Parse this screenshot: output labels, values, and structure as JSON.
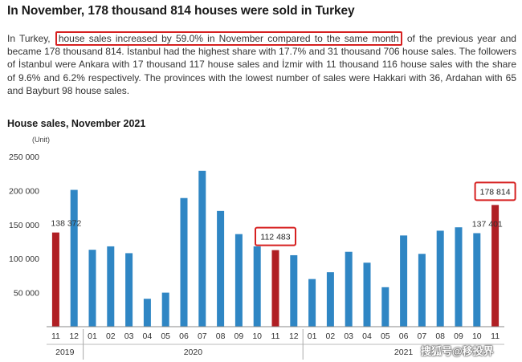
{
  "article": {
    "headline": "In November, 178 thousand 814 houses were sold in Turkey",
    "paragraph_before": "In Turkey, ",
    "paragraph_highlight": "house sales increased by 59.0% in November compared to the same month",
    "paragraph_after": " of the previous year and became 178 thousand 814. İstanbul had the highest share with 17.7% and 31 thousand 706 house sales. The followers of İstanbul were Ankara with 17 thousand 117 house sales and İzmir with 11 thousand 116 house sales with the share of 9.6% and 6.2% respectively. The provinces with the lowest number of sales were Hakkari with 36, Ardahan with 65 and Bayburt 98 house sales."
  },
  "chart_data": {
    "type": "bar",
    "title": "House sales, November 2021",
    "ylabel": "(Unit)",
    "ylim": [
      0,
      250000
    ],
    "yticks": [
      50000,
      100000,
      150000,
      200000,
      250000
    ],
    "ytick_labels": [
      "50 000",
      "100 000",
      "150 000",
      "200 000",
      "250 000"
    ],
    "categories": [
      "11",
      "12",
      "01",
      "02",
      "03",
      "04",
      "05",
      "06",
      "07",
      "08",
      "09",
      "10",
      "11",
      "12",
      "01",
      "02",
      "03",
      "04",
      "05",
      "06",
      "07",
      "08",
      "09",
      "10",
      "11"
    ],
    "values": [
      138372,
      201000,
      113000,
      118000,
      108000,
      41000,
      50000,
      189000,
      229000,
      170000,
      136000,
      118000,
      112483,
      105000,
      70000,
      80000,
      110000,
      94000,
      58000,
      134000,
      107000,
      141000,
      146000,
      137401,
      178814
    ],
    "highlighted": [
      0,
      12,
      24
    ],
    "year_groups": [
      {
        "label": "2019",
        "start": 0,
        "end": 1
      },
      {
        "label": "2020",
        "start": 2,
        "end": 13
      },
      {
        "label": "2021",
        "start": 14,
        "end": 24
      }
    ],
    "data_labels": [
      {
        "index": 0,
        "text": "138 372",
        "boxed": false
      },
      {
        "index": 12,
        "text": "112 483",
        "boxed": true
      },
      {
        "index": 23,
        "text": "137 401",
        "boxed": false
      },
      {
        "index": 24,
        "text": "178 814",
        "boxed": true
      }
    ],
    "grid": false,
    "colors": {
      "bar": "#2f86c4",
      "highlight": "#b01f24",
      "box": "#d62020",
      "axis": "#888888"
    }
  },
  "watermark": "搜狐号@移投界"
}
